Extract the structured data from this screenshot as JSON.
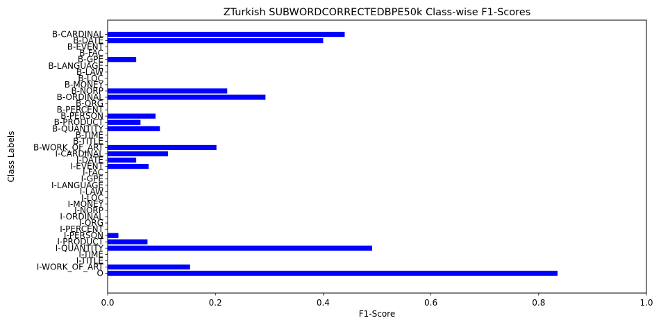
{
  "chart_data": {
    "type": "bar",
    "orientation": "horizontal",
    "title": "ZTurkish SUBWORDCORRECTEDBPE50k Class-wise F1-Scores",
    "xlabel": "F1-Score",
    "ylabel": "Class Labels",
    "xlim": [
      0,
      1.0
    ],
    "xticks": [
      "0.0",
      "0.2",
      "0.4",
      "0.6",
      "0.8",
      "1.0"
    ],
    "grid": false,
    "bar_color": "#0000ff",
    "categories": [
      "B-CARDINAL",
      "B-DATE",
      "B-EVENT",
      "B-FAC",
      "B-GPE",
      "B-LANGUAGE",
      "B-LAW",
      "B-LOC",
      "B-MONEY",
      "B-NORP",
      "B-ORDINAL",
      "B-ORG",
      "B-PERCENT",
      "B-PERSON",
      "B-PRODUCT",
      "B-QUANTITY",
      "B-TIME",
      "B-TITLE",
      "B-WORK_OF_ART",
      "I-CARDINAL",
      "I-DATE",
      "I-EVENT",
      "I-FAC",
      "I-GPE",
      "I-LANGUAGE",
      "I-LAW",
      "I-LOC",
      "I-MONEY",
      "I-NORP",
      "I-ORDINAL",
      "I-ORG",
      "I-PERCENT",
      "I-PERSON",
      "I-PRODUCT",
      "I-QUANTITY",
      "I-TIME",
      "I-TITLE",
      "I-WORK_OF_ART",
      "O"
    ],
    "values": [
      0.44,
      0.4,
      0.0,
      0.0,
      0.053,
      0.0,
      0.0,
      0.0,
      0.0,
      0.222,
      0.293,
      0.0,
      0.0,
      0.089,
      0.061,
      0.097,
      0.0,
      0.0,
      0.202,
      0.112,
      0.053,
      0.076,
      0.0,
      0.0,
      0.0,
      0.0,
      0.0,
      0.0,
      0.0,
      0.0,
      0.0,
      0.0,
      0.02,
      0.074,
      0.491,
      0.0,
      0.0,
      0.153,
      0.835
    ]
  }
}
